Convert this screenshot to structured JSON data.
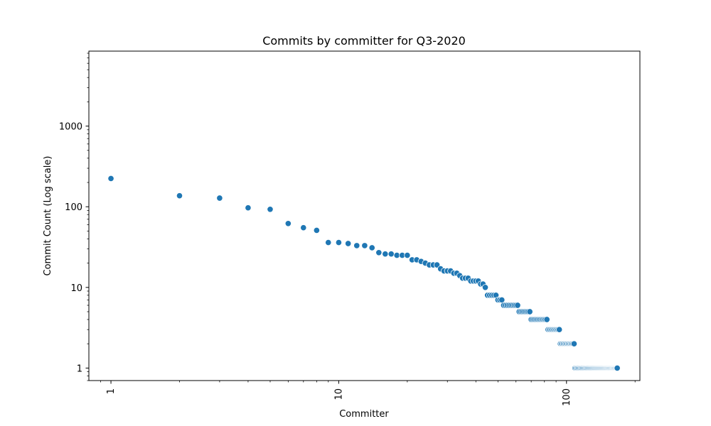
{
  "chart_data": {
    "type": "scatter",
    "title": "Commits by committer for Q3-2020",
    "xlabel": "Committer",
    "ylabel": "Commit Count (Log scale)",
    "xscale": "log",
    "yscale": "log",
    "xlim": [
      0.8,
      210
    ],
    "ylim": [
      0.7,
      8500
    ],
    "grid": false,
    "marker_color": "#1f77b4",
    "x_ticks": [
      {
        "value": 1,
        "label": "1"
      },
      {
        "value": 10,
        "label": "10"
      },
      {
        "value": 100,
        "label": "100"
      }
    ],
    "y_ticks": [
      {
        "value": 1,
        "label": "1"
      },
      {
        "value": 10,
        "label": "10"
      },
      {
        "value": 100,
        "label": "100"
      },
      {
        "value": 1000,
        "label": "1000"
      }
    ],
    "y_by_rank": [
      224,
      137,
      128,
      97,
      93,
      62,
      55,
      51,
      36,
      36,
      35,
      33,
      33,
      31,
      27,
      26,
      26,
      25,
      25,
      25,
      22,
      22,
      21,
      20,
      19,
      19,
      19,
      17,
      16,
      16,
      16,
      15,
      15,
      14,
      13,
      13,
      13,
      12,
      12,
      12,
      12,
      11,
      11,
      10,
      8,
      8,
      8,
      8,
      8,
      7,
      7,
      7,
      6,
      6,
      6,
      6,
      6,
      6,
      6,
      6,
      6,
      5,
      5,
      5,
      5,
      5,
      5,
      5,
      5,
      4,
      4,
      4,
      4,
      4,
      4,
      4,
      4,
      4,
      4,
      4,
      4,
      4,
      3,
      3,
      3,
      3,
      3,
      3,
      3,
      3,
      3,
      3,
      3,
      2,
      2,
      2,
      2,
      2,
      2,
      2,
      2,
      2,
      2,
      2,
      2,
      2,
      2,
      2,
      1,
      1,
      1,
      1,
      1,
      1,
      1,
      1,
      1,
      1,
      1,
      1,
      1,
      1,
      1,
      1,
      1,
      1,
      1,
      1,
      1,
      1,
      1,
      1,
      1,
      1,
      1,
      1,
      1,
      1,
      1,
      1,
      1,
      1,
      1,
      1,
      1,
      1,
      1,
      1,
      1,
      1,
      1,
      1,
      1,
      1,
      1,
      1,
      1,
      1,
      1,
      1,
      1,
      1,
      1,
      1,
      1,
      1,
      1
    ]
  }
}
